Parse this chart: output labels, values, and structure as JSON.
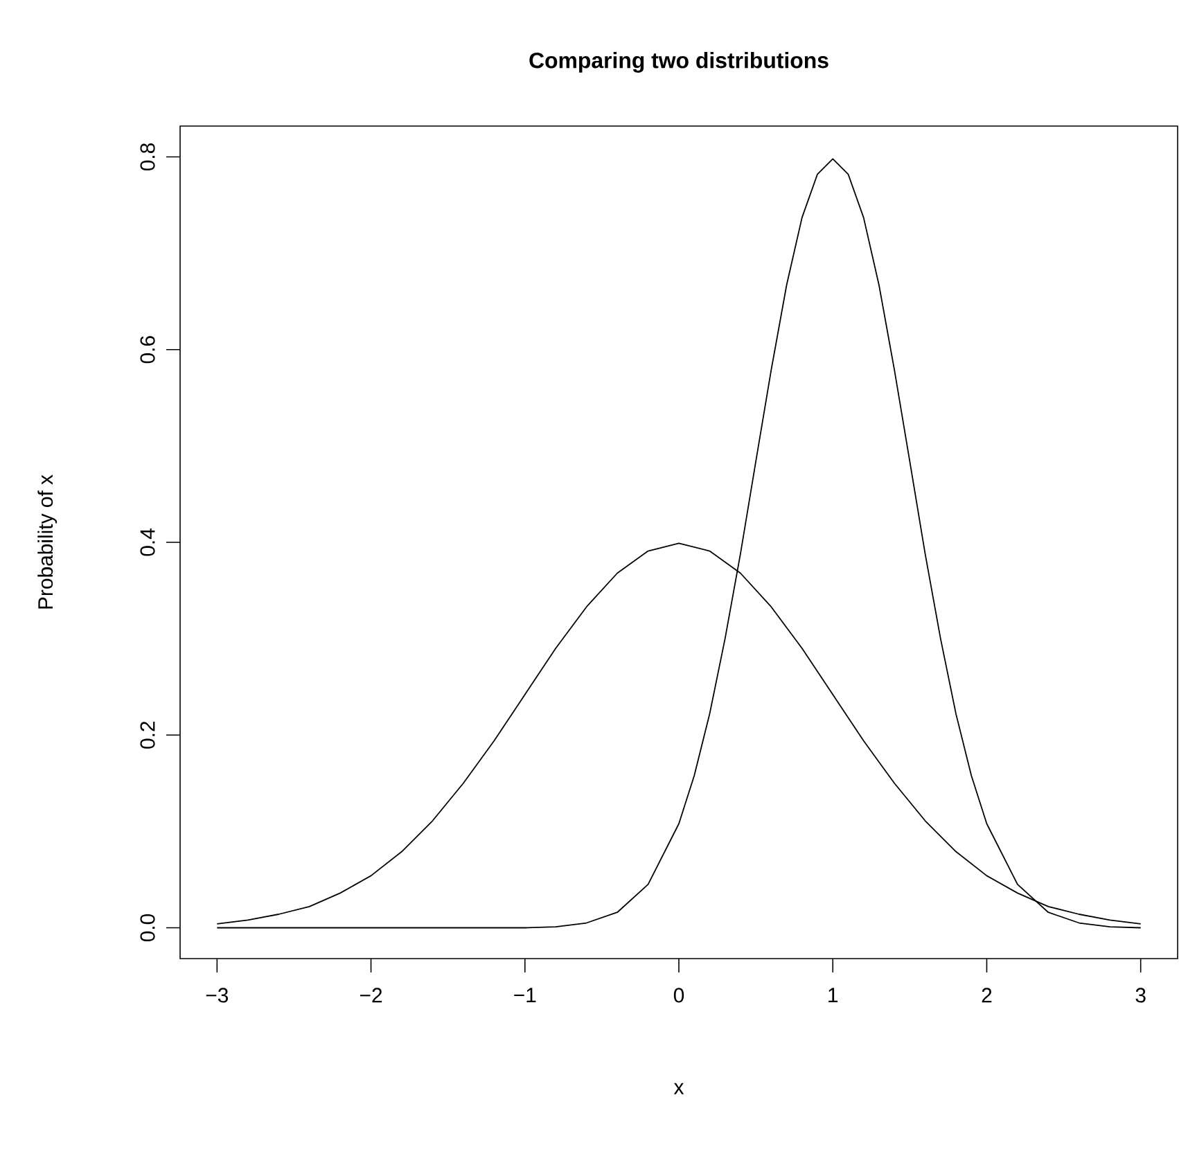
{
  "chart_data": {
    "type": "line",
    "title": "Comparing two distributions",
    "xlabel": "x",
    "ylabel": "Probability of x",
    "xlim": [
      -3.24,
      3.24
    ],
    "ylim": [
      -0.032,
      0.832
    ],
    "xticks": [
      {
        "value": -3,
        "label": "−3"
      },
      {
        "value": -2,
        "label": "−2"
      },
      {
        "value": -1,
        "label": "−1"
      },
      0,
      1,
      2,
      3
    ],
    "yticks": [
      {
        "value": 0,
        "label": "0.0"
      },
      0.2,
      0.4,
      0.6,
      0.8
    ],
    "marker": "none",
    "line_style": "solid",
    "series": [
      {
        "color": "#000000",
        "x": [
          -3,
          -2.8,
          -2.6,
          -2.4,
          -2.2,
          -2,
          -1.8,
          -1.6,
          -1.4,
          -1.2,
          -1,
          -0.8,
          -0.6,
          -0.4,
          -0.2,
          0,
          0.2,
          0.4,
          0.6,
          0.8,
          1,
          1.2,
          1.4,
          1.6,
          1.8,
          2,
          2.2,
          2.4,
          2.6,
          2.8,
          3
        ],
        "values": [
          0.004,
          0.008,
          0.014,
          0.022,
          0.036,
          0.054,
          0.079,
          0.111,
          0.15,
          0.194,
          0.242,
          0.29,
          0.333,
          0.368,
          0.391,
          0.399,
          0.391,
          0.368,
          0.333,
          0.29,
          0.242,
          0.194,
          0.15,
          0.111,
          0.079,
          0.054,
          0.036,
          0.022,
          0.014,
          0.008,
          0.004
        ]
      },
      {
        "color": "#000000",
        "x": [
          -3,
          -2,
          -1,
          -0.8,
          -0.6,
          -0.4,
          -0.2,
          0,
          0.1,
          0.2,
          0.3,
          0.4,
          0.5,
          0.6,
          0.7,
          0.8,
          0.9,
          1,
          1.1,
          1.2,
          1.3,
          1.4,
          1.5,
          1.6,
          1.7,
          1.8,
          1.9,
          2,
          2.2,
          2.4,
          2.6,
          2.8,
          3
        ],
        "values": [
          0,
          0,
          0,
          0.001,
          0.005,
          0.016,
          0.045,
          0.108,
          0.158,
          0.222,
          0.3,
          0.388,
          0.484,
          0.579,
          0.667,
          0.737,
          0.782,
          0.798,
          0.782,
          0.737,
          0.667,
          0.579,
          0.484,
          0.388,
          0.3,
          0.222,
          0.158,
          0.108,
          0.045,
          0.016,
          0.005,
          0.001,
          0
        ]
      }
    ]
  }
}
